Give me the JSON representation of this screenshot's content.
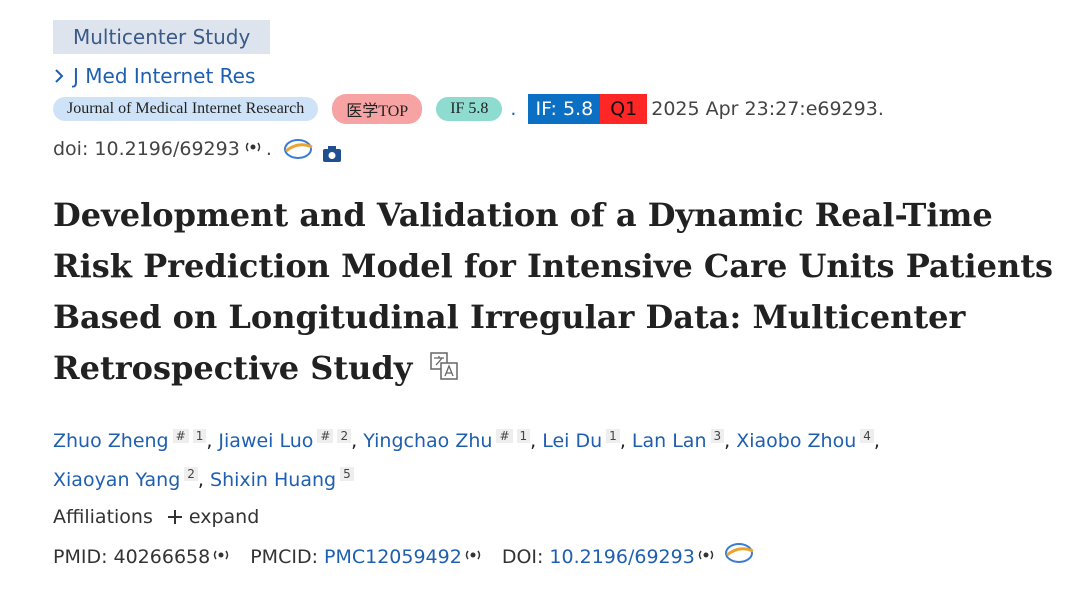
{
  "header": {
    "badge": "Multicenter Study",
    "journal_link": "J Med Internet Res",
    "journal_pill": "Journal of Medical Internet Research",
    "top_pill": "医学TOP",
    "if_pill": "IF 5.8",
    "dot": ".",
    "if_box": "IF: 5.8",
    "quartile": "Q1",
    "citation": "2025 Apr 23:27:e69293.",
    "doi": "doi: 10.2196/69293",
    "doi_end": "."
  },
  "title": "Development and Validation of a Dynamic Real-Time Risk Prediction Model for Intensive Care Units Patients Based on Longitudinal Irregular Data: Multicenter Retrospective Study",
  "authors": {
    "separator": ",",
    "list": [
      {
        "name": "Zhuo Zheng",
        "mark": "#",
        "affil": "1"
      },
      {
        "name": "Jiawei Luo",
        "mark": "#",
        "affil": "2"
      },
      {
        "name": "Yingchao Zhu",
        "mark": "#",
        "affil": "1"
      },
      {
        "name": "Lei Du",
        "affil": "1"
      },
      {
        "name": "Lan Lan",
        "affil": "3"
      },
      {
        "name": "Xiaobo Zhou",
        "affil": "4"
      },
      {
        "name": "Xiaoyan Yang",
        "affil": "2"
      },
      {
        "name": "Shixin Huang",
        "affil": "5"
      }
    ]
  },
  "affiliations": {
    "label": "Affiliations",
    "expand": "expand"
  },
  "ids": {
    "pmid_label": "PMID:",
    "pmid": "40266658",
    "pmcid_label": "PMCID:",
    "pmcid": "PMC12059492",
    "doi_label": "DOI:",
    "doi": "10.2196/69293"
  }
}
